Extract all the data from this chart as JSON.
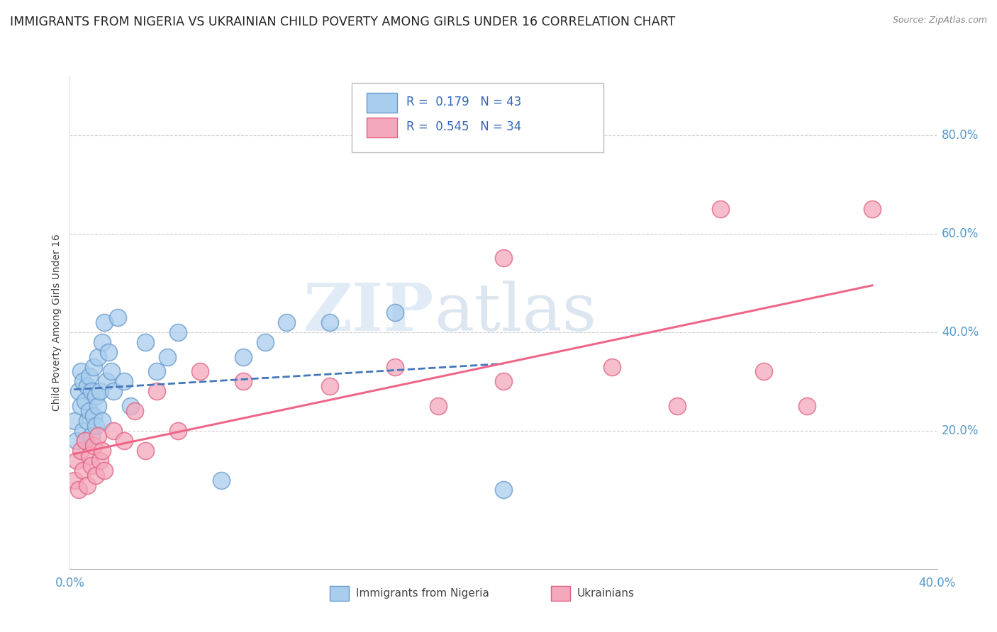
{
  "title": "IMMIGRANTS FROM NIGERIA VS UKRAINIAN CHILD POVERTY AMONG GIRLS UNDER 16 CORRELATION CHART",
  "source": "Source: ZipAtlas.com",
  "ylabel": "Child Poverty Among Girls Under 16",
  "ylabel_right_ticks": [
    "80.0%",
    "60.0%",
    "40.0%",
    "20.0%"
  ],
  "ylabel_right_vals": [
    0.8,
    0.6,
    0.4,
    0.2
  ],
  "xlim": [
    0.0,
    0.4
  ],
  "ylim": [
    -0.08,
    0.92
  ],
  "color_nigeria": "#A8CDED",
  "color_ukraine": "#F4A8BC",
  "color_nigeria_edge": "#6699CC",
  "color_ukraine_edge": "#E06080",
  "color_nigeria_line": "#4477BB",
  "color_ukraine_line": "#EE6688",
  "grid_color": "#CCCCCC",
  "background_color": "#FFFFFF",
  "title_fontsize": 12.5,
  "axis_label_fontsize": 10,
  "tick_fontsize": 12,
  "nigeria_scatter_x": [
    0.002,
    0.003,
    0.004,
    0.005,
    0.005,
    0.006,
    0.006,
    0.007,
    0.007,
    0.008,
    0.008,
    0.009,
    0.009,
    0.01,
    0.01,
    0.011,
    0.011,
    0.012,
    0.012,
    0.013,
    0.013,
    0.014,
    0.015,
    0.015,
    0.016,
    0.017,
    0.018,
    0.019,
    0.02,
    0.022,
    0.025,
    0.028,
    0.035,
    0.04,
    0.045,
    0.05,
    0.07,
    0.08,
    0.09,
    0.1,
    0.12,
    0.15,
    0.2
  ],
  "nigeria_scatter_y": [
    0.22,
    0.18,
    0.28,
    0.25,
    0.32,
    0.2,
    0.3,
    0.18,
    0.26,
    0.22,
    0.29,
    0.24,
    0.31,
    0.19,
    0.28,
    0.23,
    0.33,
    0.21,
    0.27,
    0.25,
    0.35,
    0.28,
    0.22,
    0.38,
    0.42,
    0.3,
    0.36,
    0.32,
    0.28,
    0.43,
    0.3,
    0.25,
    0.38,
    0.32,
    0.35,
    0.4,
    0.1,
    0.35,
    0.38,
    0.42,
    0.42,
    0.44,
    0.08
  ],
  "ukraine_scatter_x": [
    0.002,
    0.003,
    0.004,
    0.005,
    0.006,
    0.007,
    0.008,
    0.009,
    0.01,
    0.011,
    0.012,
    0.013,
    0.014,
    0.015,
    0.016,
    0.02,
    0.025,
    0.03,
    0.035,
    0.04,
    0.05,
    0.06,
    0.08,
    0.12,
    0.15,
    0.17,
    0.2,
    0.2,
    0.25,
    0.28,
    0.3,
    0.32,
    0.34,
    0.37
  ],
  "ukraine_scatter_y": [
    0.1,
    0.14,
    0.08,
    0.16,
    0.12,
    0.18,
    0.09,
    0.15,
    0.13,
    0.17,
    0.11,
    0.19,
    0.14,
    0.16,
    0.12,
    0.2,
    0.18,
    0.24,
    0.16,
    0.28,
    0.2,
    0.32,
    0.3,
    0.29,
    0.33,
    0.25,
    0.3,
    0.55,
    0.33,
    0.25,
    0.65,
    0.32,
    0.25,
    0.65
  ],
  "watermark_zip": "ZIP",
  "watermark_atlas": "atlas",
  "legend_text1": "R =  0.179   N = 43",
  "legend_text2": "R =  0.545   N = 34",
  "legend_r1_color": "#3366BB",
  "legend_n1_color": "#3366BB",
  "legend_r2_color": "#3366BB",
  "legend_n2_color": "#3366BB"
}
